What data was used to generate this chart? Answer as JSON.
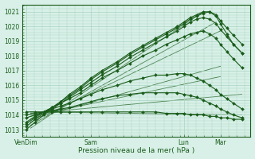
{
  "xlabel": "Pression niveau de la mer( hPa )",
  "bg_color": "#d8f0e8",
  "grid_color": "#aad4c0",
  "line_color": "#1a5c1a",
  "ylim": [
    1012.5,
    1021.5
  ],
  "yticks": [
    1013,
    1014,
    1015,
    1016,
    1017,
    1018,
    1019,
    1020,
    1021
  ],
  "xtick_labels": [
    "VenDim",
    "Sam",
    "Lun",
    "Mar"
  ],
  "xtick_positions": [
    0.0,
    0.3,
    0.73,
    0.9
  ],
  "forecast_lines": [
    {
      "x": [
        0.0,
        0.04,
        0.08,
        0.12,
        0.16,
        0.2,
        0.25,
        0.3,
        0.35,
        0.42,
        0.48,
        0.54,
        0.6,
        0.65,
        0.7,
        0.73,
        0.76,
        0.79,
        0.82,
        0.85,
        0.88,
        0.9,
        0.93,
        0.96,
        1.0
      ],
      "y": [
        1013.0,
        1013.5,
        1014.0,
        1014.4,
        1014.8,
        1015.2,
        1015.7,
        1016.2,
        1016.7,
        1017.3,
        1017.9,
        1018.4,
        1018.9,
        1019.3,
        1019.7,
        1020.0,
        1020.3,
        1020.5,
        1020.6,
        1020.5,
        1020.2,
        1019.8,
        1019.3,
        1018.8,
        1018.2
      ]
    },
    {
      "x": [
        0.0,
        0.04,
        0.08,
        0.12,
        0.16,
        0.2,
        0.25,
        0.3,
        0.35,
        0.42,
        0.48,
        0.54,
        0.6,
        0.65,
        0.7,
        0.73,
        0.76,
        0.79,
        0.82,
        0.85,
        0.88,
        0.9,
        0.93,
        0.96,
        1.0
      ],
      "y": [
        1013.2,
        1013.7,
        1014.1,
        1014.5,
        1014.9,
        1015.3,
        1015.8,
        1016.4,
        1016.9,
        1017.5,
        1018.1,
        1018.6,
        1019.1,
        1019.5,
        1019.9,
        1020.2,
        1020.5,
        1020.7,
        1020.9,
        1021.0,
        1020.8,
        1020.4,
        1019.9,
        1019.4,
        1018.8
      ]
    },
    {
      "x": [
        0.0,
        0.04,
        0.08,
        0.12,
        0.16,
        0.2,
        0.25,
        0.3,
        0.35,
        0.42,
        0.48,
        0.54,
        0.6,
        0.65,
        0.7,
        0.73,
        0.76,
        0.79,
        0.82,
        0.85,
        0.88,
        0.9,
        0.93,
        0.96,
        1.0
      ],
      "y": [
        1013.4,
        1013.8,
        1014.2,
        1014.5,
        1014.9,
        1015.4,
        1015.9,
        1016.5,
        1017.0,
        1017.6,
        1018.2,
        1018.7,
        1019.2,
        1019.6,
        1020.0,
        1020.3,
        1020.6,
        1020.8,
        1021.0,
        1021.0,
        1020.7,
        1020.2,
        1019.5,
        1018.8,
        1018.2
      ]
    },
    {
      "x": [
        0.0,
        0.04,
        0.08,
        0.12,
        0.16,
        0.2,
        0.25,
        0.3,
        0.35,
        0.42,
        0.48,
        0.54,
        0.6,
        0.65,
        0.7,
        0.73,
        0.76,
        0.79,
        0.82,
        0.85,
        0.88,
        0.9,
        0.93,
        0.96,
        1.0
      ],
      "y": [
        1013.5,
        1013.9,
        1014.2,
        1014.5,
        1014.8,
        1015.1,
        1015.5,
        1016.0,
        1016.5,
        1017.0,
        1017.5,
        1018.0,
        1018.4,
        1018.8,
        1019.1,
        1019.3,
        1019.5,
        1019.6,
        1019.7,
        1019.5,
        1019.2,
        1018.8,
        1018.3,
        1017.8,
        1017.2
      ]
    },
    {
      "x": [
        0.0,
        0.04,
        0.08,
        0.12,
        0.16,
        0.2,
        0.25,
        0.3,
        0.35,
        0.42,
        0.48,
        0.54,
        0.6,
        0.65,
        0.7,
        0.73,
        0.76,
        0.79,
        0.82,
        0.85,
        0.88,
        0.9,
        0.93,
        0.96,
        1.0
      ],
      "y": [
        1013.8,
        1014.0,
        1014.2,
        1014.4,
        1014.6,
        1014.8,
        1015.1,
        1015.4,
        1015.7,
        1016.0,
        1016.3,
        1016.5,
        1016.7,
        1016.7,
        1016.8,
        1016.8,
        1016.7,
        1016.5,
        1016.3,
        1016.0,
        1015.7,
        1015.4,
        1015.1,
        1014.8,
        1014.4
      ]
    },
    {
      "x": [
        0.0,
        0.04,
        0.08,
        0.12,
        0.16,
        0.2,
        0.25,
        0.3,
        0.35,
        0.42,
        0.48,
        0.54,
        0.6,
        0.65,
        0.7,
        0.73,
        0.76,
        0.79,
        0.82,
        0.85,
        0.88,
        0.9,
        0.93,
        0.96,
        1.0
      ],
      "y": [
        1014.0,
        1014.1,
        1014.2,
        1014.3,
        1014.4,
        1014.5,
        1014.7,
        1014.9,
        1015.1,
        1015.3,
        1015.4,
        1015.5,
        1015.5,
        1015.5,
        1015.5,
        1015.4,
        1015.3,
        1015.2,
        1015.0,
        1014.8,
        1014.6,
        1014.4,
        1014.2,
        1014.0,
        1013.8
      ]
    },
    {
      "x": [
        0.0,
        0.04,
        0.08,
        0.12,
        0.16,
        0.2,
        0.25,
        0.3,
        0.35,
        0.42,
        0.48,
        0.54,
        0.6,
        0.65,
        0.7,
        0.73,
        0.76,
        0.79,
        0.82,
        0.85,
        0.88,
        0.9,
        0.93,
        0.96,
        1.0
      ],
      "y": [
        1014.2,
        1014.2,
        1014.2,
        1014.2,
        1014.2,
        1014.2,
        1014.2,
        1014.2,
        1014.2,
        1014.2,
        1014.2,
        1014.2,
        1014.2,
        1014.1,
        1014.1,
        1014.1,
        1014.0,
        1014.0,
        1014.0,
        1013.9,
        1013.9,
        1013.8,
        1013.8,
        1013.7,
        1013.7
      ]
    }
  ],
  "straight_lines": [
    {
      "x": [
        0.02,
        0.82
      ],
      "y": [
        1013.1,
        1021.0
      ]
    },
    {
      "x": [
        0.02,
        0.88
      ],
      "y": [
        1013.3,
        1020.3
      ]
    },
    {
      "x": [
        0.02,
        0.9
      ],
      "y": [
        1013.5,
        1019.7
      ]
    },
    {
      "x": [
        0.02,
        0.9
      ],
      "y": [
        1013.7,
        1017.3
      ]
    },
    {
      "x": [
        0.02,
        0.9
      ],
      "y": [
        1013.9,
        1016.6
      ]
    },
    {
      "x": [
        0.02,
        1.0
      ],
      "y": [
        1014.1,
        1015.4
      ]
    },
    {
      "x": [
        0.02,
        1.0
      ],
      "y": [
        1014.2,
        1014.0
      ]
    }
  ]
}
